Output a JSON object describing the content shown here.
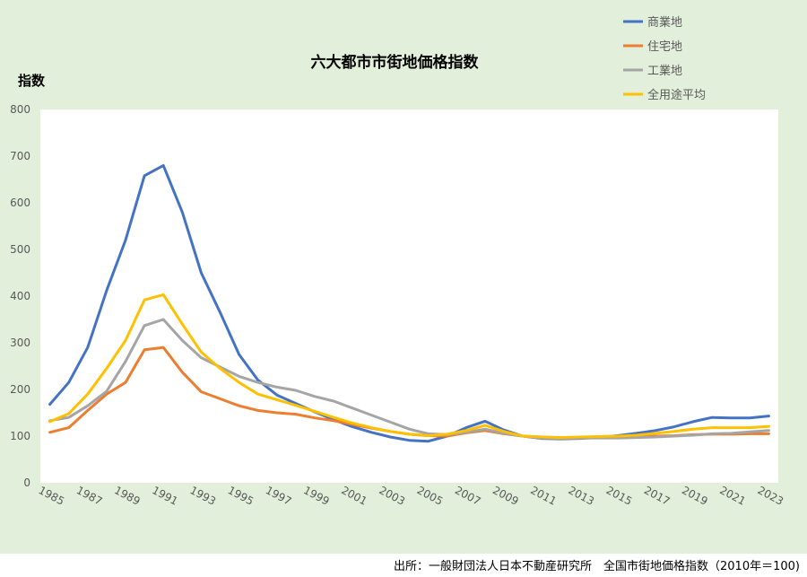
{
  "chart_data": {
    "type": "line",
    "title": "六大都市市街地価格指数",
    "ylabel": "指数",
    "xlabel": "",
    "ylim": [
      0,
      800
    ],
    "y_ticks": [
      "0",
      "100",
      "200",
      "300",
      "400",
      "500",
      "600",
      "700",
      "800"
    ],
    "x": [
      1985,
      1986,
      1987,
      1988,
      1989,
      1990,
      1991,
      1992,
      1993,
      1994,
      1995,
      1996,
      1997,
      1998,
      1999,
      2000,
      2001,
      2002,
      2003,
      2004,
      2005,
      2006,
      2007,
      2008,
      2009,
      2010,
      2011,
      2012,
      2013,
      2014,
      2015,
      2016,
      2017,
      2018,
      2019,
      2020,
      2021,
      2022,
      2023
    ],
    "x_tick_labels": [
      "1985",
      "1987",
      "1989",
      "1991",
      "1993",
      "1995",
      "1997",
      "1999",
      "2001",
      "2003",
      "2005",
      "2007",
      "2009",
      "2011",
      "2013",
      "2015",
      "2017",
      "2019",
      "2021",
      "2023"
    ],
    "grid": false,
    "legend_position": "top-right",
    "series": [
      {
        "name": "商業地",
        "color": "#4472c4",
        "values": [
          168,
          215,
          290,
          412,
          520,
          658,
          680,
          580,
          450,
          365,
          275,
          220,
          188,
          170,
          152,
          135,
          120,
          108,
          98,
          91,
          89,
          100,
          118,
          132,
          113,
          100,
          95,
          94,
          95,
          97,
          101,
          106,
          112,
          120,
          131,
          140,
          139,
          139,
          143
        ]
      },
      {
        "name": "住宅地",
        "color": "#ed7d31",
        "values": [
          108,
          118,
          155,
          190,
          215,
          285,
          290,
          237,
          195,
          180,
          165,
          155,
          150,
          147,
          139,
          133,
          125,
          117,
          110,
          104,
          101,
          100,
          107,
          112,
          105,
          100,
          98,
          97,
          97,
          97,
          97,
          98,
          100,
          101,
          103,
          104,
          104,
          105,
          105
        ]
      },
      {
        "name": "工業地",
        "color": "#a5a5a5",
        "values": [
          133,
          140,
          165,
          196,
          260,
          337,
          350,
          305,
          268,
          248,
          228,
          215,
          205,
          198,
          185,
          175,
          160,
          145,
          130,
          115,
          105,
          103,
          108,
          115,
          106,
          100,
          96,
          95,
          96,
          96,
          96,
          97,
          98,
          100,
          102,
          105,
          106,
          109,
          112
        ]
      },
      {
        "name": "全用途平均",
        "color": "#ffc000",
        "values": [
          131,
          148,
          190,
          245,
          305,
          392,
          403,
          340,
          280,
          245,
          215,
          190,
          178,
          166,
          153,
          140,
          128,
          118,
          110,
          104,
          101,
          104,
          112,
          123,
          110,
          100,
          98,
          97,
          98,
          99,
          100,
          102,
          106,
          110,
          115,
          118,
          118,
          118,
          121
        ]
      }
    ]
  },
  "source_note": "出所：一般財団法人日本不動産研究所　全国市街地価格指数（2010年＝100)"
}
